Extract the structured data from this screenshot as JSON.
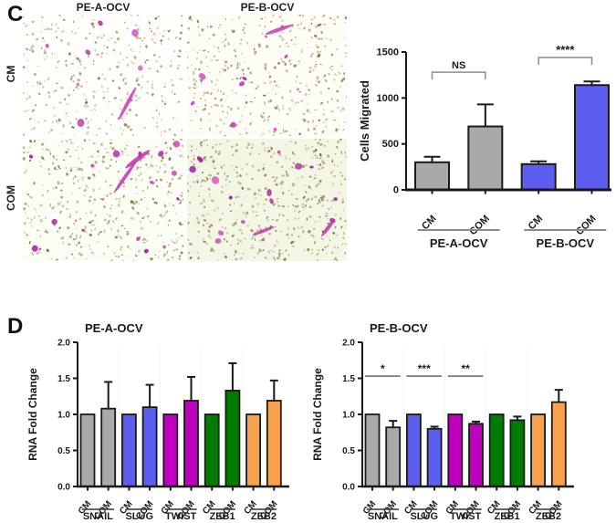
{
  "panel_c": {
    "label": "C",
    "col_headers": [
      "PE-A-OCV",
      "PE-B-OCV"
    ],
    "row_labels": [
      "CM",
      "COM"
    ],
    "micrographs": [
      {
        "id": "cm-pe-a-ocv",
        "row": "CM",
        "col": "PE-A-OCV",
        "seed": 11,
        "bg": "#fefdfa",
        "pore_count": 340,
        "pore_palette": [
          "#9b8a58",
          "#8a7a4a",
          "#ab9d6e",
          "#6f6138",
          "#c3b68a"
        ],
        "cell_count": 7,
        "streak_count": 1,
        "cell_palette": [
          "#c63ab6",
          "#d55ac6",
          "#b02ba2"
        ]
      },
      {
        "id": "cm-pe-b-ocv",
        "row": "CM",
        "col": "PE-B-OCV",
        "seed": 22,
        "bg": "#fdfcf5",
        "pore_count": 400,
        "pore_palette": [
          "#9b8a58",
          "#8a7a4a",
          "#a89a66",
          "#6f6138",
          "#bdb184"
        ],
        "cell_count": 8,
        "streak_count": 1,
        "cell_palette": [
          "#c63ab6",
          "#d55ac6",
          "#b02ba2"
        ]
      },
      {
        "id": "com-pe-a-ocv",
        "row": "COM",
        "col": "PE-A-OCV",
        "seed": 33,
        "bg": "#fbfcf3",
        "pore_count": 430,
        "pore_palette": [
          "#94864f",
          "#82723f",
          "#a2945e",
          "#665831",
          "#b5ab7c"
        ],
        "cell_count": 15,
        "streak_count": 2,
        "cell_palette": [
          "#c032ae",
          "#d052c0",
          "#a5269a"
        ]
      },
      {
        "id": "com-pe-b-ocv",
        "row": "COM",
        "col": "PE-B-OCV",
        "seed": 44,
        "bg": "#f3f6e4",
        "pore_count": 470,
        "pore_palette": [
          "#8d8048",
          "#7c6e3b",
          "#9c8f58",
          "#60522c",
          "#aaa573"
        ],
        "cell_count": 14,
        "streak_count": 2,
        "cell_palette": [
          "#c032ae",
          "#d052c0",
          "#a5269a"
        ]
      }
    ]
  },
  "panel_d": {
    "label": "D"
  },
  "chart_data": [
    {
      "id": "cells-migrated",
      "type": "bar",
      "title": "",
      "ylabel": "Cells Migrated",
      "ylim": [
        0,
        1500
      ],
      "yticks": [
        0,
        500,
        1000,
        1500
      ],
      "ytick_labels": [
        "0",
        "500",
        "1000",
        "1500"
      ],
      "grid": false,
      "legend": "none",
      "groups": [
        {
          "label": "PE-A-OCV",
          "color": "#a9a9a9",
          "bars": [
            {
              "label": "CM",
              "value": 300,
              "error": 60
            },
            {
              "label": "COM",
              "value": 690,
              "error": 240
            }
          ]
        },
        {
          "label": "PE-B-OCV",
          "color": "#5d5df0",
          "bars": [
            {
              "label": "CM",
              "value": 280,
              "error": 30
            },
            {
              "label": "COM",
              "value": 1140,
              "error": 40
            }
          ]
        }
      ],
      "annotations": [
        {
          "text": "NS",
          "style": "bracket",
          "from_bar": 0,
          "to_bar": 1,
          "y_value": 1280
        },
        {
          "text": "****",
          "style": "bracket",
          "from_bar": 2,
          "to_bar": 3,
          "y_value": 1440
        }
      ]
    },
    {
      "id": "rna-pe-a",
      "type": "bar",
      "title": "PE-A-OCV",
      "ylabel": "RNA Fold Change",
      "ylim": [
        0,
        2
      ],
      "yticks": [
        0,
        0.5,
        1,
        1.5,
        2
      ],
      "ytick_labels": [
        "0.0",
        "0.5",
        "1.0",
        "1.5",
        "2.0"
      ],
      "grid": false,
      "legend": "none",
      "groups": [
        {
          "label": "SNAIL",
          "color": "#a9a9a9",
          "bars": [
            {
              "label": "CM",
              "value": 1.0,
              "error": 0
            },
            {
              "label": "COM",
              "value": 1.08,
              "error": 0.37
            }
          ]
        },
        {
          "label": "SLUG",
          "color": "#5d5df0",
          "bars": [
            {
              "label": "CM",
              "value": 1.0,
              "error": 0
            },
            {
              "label": "COM",
              "value": 1.1,
              "error": 0.31
            }
          ]
        },
        {
          "label": "TWIST",
          "color": "#bf00bf",
          "bars": [
            {
              "label": "CM",
              "value": 1.0,
              "error": 0
            },
            {
              "label": "COM",
              "value": 1.19,
              "error": 0.33
            }
          ]
        },
        {
          "label": "ZEB1",
          "color": "#007d00",
          "bars": [
            {
              "label": "CM",
              "value": 1.0,
              "error": 0
            },
            {
              "label": "COM",
              "value": 1.33,
              "error": 0.38
            }
          ]
        },
        {
          "label": "ZEB2",
          "color": "#f8a24d",
          "bars": [
            {
              "label": "CM",
              "value": 1.0,
              "error": 0
            },
            {
              "label": "COM",
              "value": 1.19,
              "error": 0.28
            }
          ]
        }
      ],
      "annotations": []
    },
    {
      "id": "rna-pe-b",
      "type": "bar",
      "title": "PE-B-OCV",
      "ylabel": "RNA Fold Change",
      "ylim": [
        0,
        2
      ],
      "yticks": [
        0,
        0.5,
        1,
        1.5,
        2
      ],
      "ytick_labels": [
        "0.0",
        "0.5",
        "1.0",
        "1.5",
        "2.0"
      ],
      "grid": false,
      "legend": "none",
      "groups": [
        {
          "label": "SNAIL",
          "color": "#a9a9a9",
          "bars": [
            {
              "label": "CM",
              "value": 1.0,
              "error": 0
            },
            {
              "label": "COM",
              "value": 0.82,
              "error": 0.09
            }
          ]
        },
        {
          "label": "SLUG",
          "color": "#5d5df0",
          "bars": [
            {
              "label": "CM",
              "value": 1.0,
              "error": 0
            },
            {
              "label": "COM",
              "value": 0.8,
              "error": 0.03
            }
          ]
        },
        {
          "label": "TWIST",
          "color": "#bf00bf",
          "bars": [
            {
              "label": "CM",
              "value": 1.0,
              "error": 0
            },
            {
              "label": "COM",
              "value": 0.87,
              "error": 0.03
            }
          ]
        },
        {
          "label": "ZEB1",
          "color": "#007d00",
          "bars": [
            {
              "label": "CM",
              "value": 1.0,
              "error": 0
            },
            {
              "label": "COM",
              "value": 0.92,
              "error": 0.05
            }
          ]
        },
        {
          "label": "ZEB2",
          "color": "#f8a24d",
          "bars": [
            {
              "label": "CM",
              "value": 1.0,
              "error": 0
            },
            {
              "label": "COM",
              "value": 1.17,
              "error": 0.17
            }
          ]
        }
      ],
      "annotations": [
        {
          "text": "*",
          "style": "line",
          "group": 0,
          "y_value": 1.53
        },
        {
          "text": "***",
          "style": "line",
          "group": 1,
          "y_value": 1.53
        },
        {
          "text": "**",
          "style": "line",
          "group": 2,
          "y_value": 1.53
        }
      ]
    }
  ],
  "colors": {
    "bar_gray": "#a9a9a9",
    "bar_blue": "#5d5df0",
    "bar_magenta": "#bf00bf",
    "bar_green": "#007d00",
    "bar_orange": "#f8a24d",
    "bracket_gray": "#8c8c8c",
    "axis_black": "#1a1a1a"
  }
}
